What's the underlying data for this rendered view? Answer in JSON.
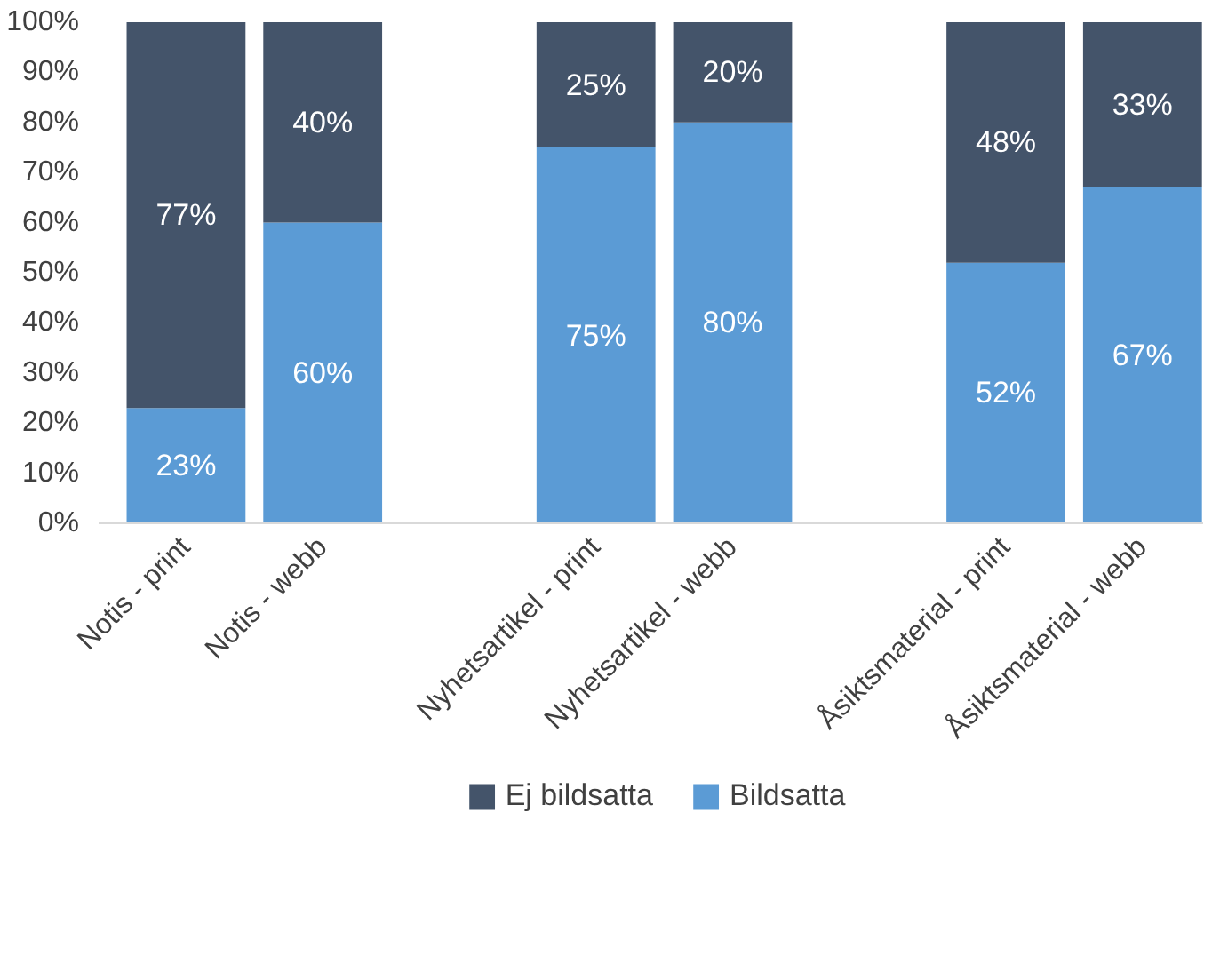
{
  "chart_data": {
    "type": "bar",
    "stacked": true,
    "categories": [
      "Notis - print",
      "Notis - webb",
      null,
      "Nyhetsartikel - print",
      "Nyhetsartikel - webb",
      null,
      "Åsiktsmaterial - print",
      "Åsiktsmaterial - webb"
    ],
    "series": [
      {
        "name": "Bildsatta",
        "color": "#5b9bd5",
        "values": [
          23,
          60,
          null,
          75,
          80,
          null,
          52,
          67
        ],
        "value_labels": [
          "23%",
          "60%",
          null,
          "75%",
          "80%",
          null,
          "52%",
          "67%"
        ]
      },
      {
        "name": "Ej bildsatta",
        "color": "#44546a",
        "values": [
          77,
          40,
          null,
          25,
          20,
          null,
          48,
          33
        ],
        "value_labels": [
          "77%",
          "40%",
          null,
          "25%",
          "20%",
          null,
          "48%",
          "33%"
        ]
      }
    ],
    "ylim": [
      0,
      100
    ],
    "yticks": [
      {
        "value": 0,
        "label": "0%"
      },
      {
        "value": 10,
        "label": "10%"
      },
      {
        "value": 20,
        "label": "20%"
      },
      {
        "value": 30,
        "label": "30%"
      },
      {
        "value": 40,
        "label": "40%"
      },
      {
        "value": 50,
        "label": "50%"
      },
      {
        "value": 60,
        "label": "60%"
      },
      {
        "value": 70,
        "label": "70%"
      },
      {
        "value": 80,
        "label": "80%"
      },
      {
        "value": 90,
        "label": "90%"
      },
      {
        "value": 100,
        "label": "100%"
      }
    ],
    "grid": false,
    "legend": "bottom"
  }
}
